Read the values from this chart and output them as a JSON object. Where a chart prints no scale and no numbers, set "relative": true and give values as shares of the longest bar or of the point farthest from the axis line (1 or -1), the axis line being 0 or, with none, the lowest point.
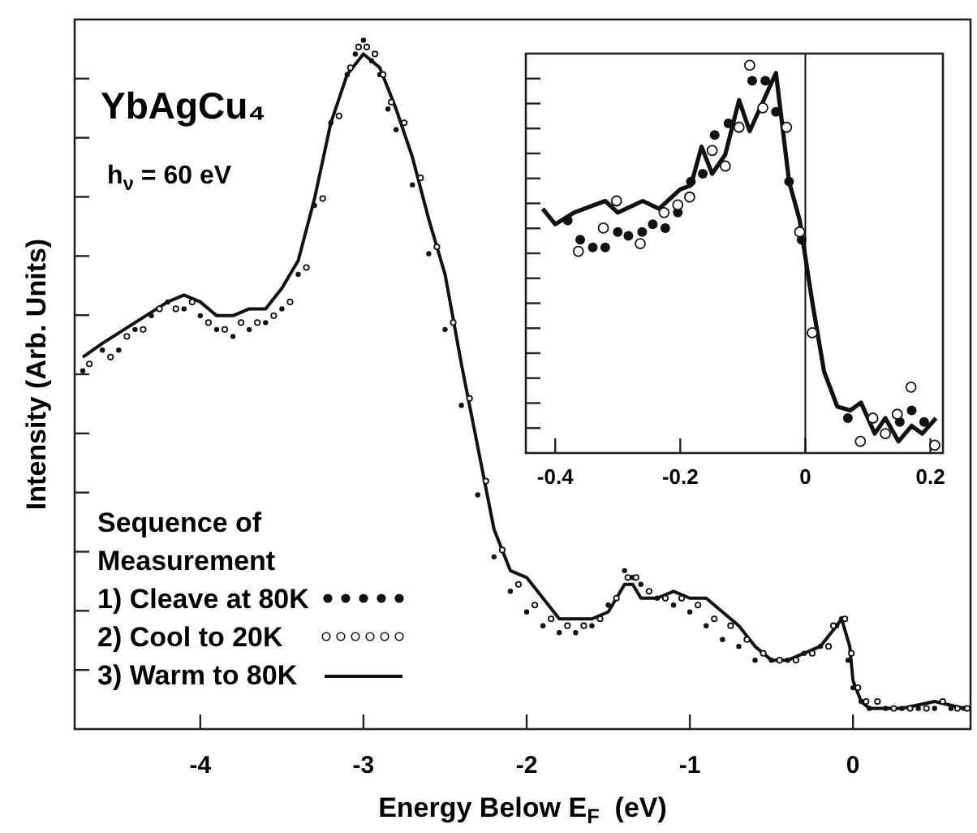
{
  "chart_data": [
    {
      "type": "scatter",
      "relative": true,
      "xlabel": "Energy Below E$_{F}$  (eV)",
      "ylabel": "Intensity (Arb. Units)",
      "legend_title": "Sequence of Measurement",
      "legend": "bottom left",
      "xlim": [
        -4.77,
        0.72
      ],
      "xticks": [
        -4,
        -3,
        -2,
        -1,
        0
      ],
      "annotations": [
        "YbAgCu₄",
        "h$_{ν}$ = 60 eV"
      ],
      "series": [
        {
          "name": "1) Cleave at 80K",
          "marker": "circle",
          "color": "#111111",
          "x": [
            -4.72,
            -4.6,
            -4.5,
            -4.4,
            -4.3,
            -4.2,
            -4.1,
            -4.0,
            -3.9,
            -3.8,
            -3.7,
            -3.6,
            -3.5,
            -3.4,
            -3.3,
            -3.2,
            -3.1,
            -3.05,
            -3.0,
            -2.95,
            -2.9,
            -2.85,
            -2.8,
            -2.7,
            -2.6,
            -2.5,
            -2.4,
            -2.3,
            -2.2,
            -2.1,
            -2.0,
            -1.9,
            -1.8,
            -1.7,
            -1.6,
            -1.5,
            -1.4,
            -1.35,
            -1.3,
            -1.2,
            -1.1,
            -1.0,
            -0.9,
            -0.8,
            -0.7,
            -0.6,
            -0.5,
            -0.4,
            -0.3,
            -0.2,
            -0.1,
            -0.07,
            -0.03,
            0,
            0.05,
            0.1,
            0.2,
            0.3,
            0.4,
            0.5,
            0.6,
            0.68
          ],
          "values": [
            0.52,
            0.55,
            0.55,
            0.58,
            0.6,
            0.62,
            0.61,
            0.6,
            0.58,
            0.57,
            0.58,
            0.59,
            0.61,
            0.66,
            0.76,
            0.88,
            0.95,
            0.98,
            1.0,
            0.97,
            0.95,
            0.9,
            0.87,
            0.79,
            0.69,
            0.58,
            0.47,
            0.34,
            0.25,
            0.2,
            0.17,
            0.15,
            0.14,
            0.14,
            0.15,
            0.18,
            0.23,
            0.22,
            0.21,
            0.19,
            0.18,
            0.17,
            0.15,
            0.13,
            0.12,
            0.1,
            0.1,
            0.1,
            0.11,
            0.12,
            0.15,
            0.16,
            0.1,
            0.06,
            0.04,
            0.03,
            0.03,
            0.03,
            0.03,
            0.03,
            0.03,
            0.03
          ]
        },
        {
          "name": "2) Cool to 20K",
          "marker": "circle",
          "color": "#111111",
          "x": [
            -4.68,
            -4.55,
            -4.45,
            -4.35,
            -4.25,
            -4.15,
            -4.05,
            -3.95,
            -3.85,
            -3.75,
            -3.65,
            -3.55,
            -3.45,
            -3.35,
            -3.25,
            -3.15,
            -3.08,
            -3.03,
            -2.98,
            -2.93,
            -2.88,
            -2.83,
            -2.75,
            -2.65,
            -2.55,
            -2.45,
            -2.35,
            -2.25,
            -2.15,
            -2.05,
            -1.95,
            -1.85,
            -1.75,
            -1.65,
            -1.55,
            -1.45,
            -1.38,
            -1.33,
            -1.25,
            -1.15,
            -1.05,
            -0.95,
            -0.85,
            -0.75,
            -0.65,
            -0.55,
            -0.45,
            -0.35,
            -0.25,
            -0.15,
            -0.12,
            -0.05,
            -0.01,
            0.03,
            0.08,
            0.15,
            0.25,
            0.35,
            0.45,
            0.55,
            0.64,
            0.7
          ],
          "values": [
            0.53,
            0.54,
            0.57,
            0.58,
            0.61,
            0.61,
            0.62,
            0.59,
            0.58,
            0.59,
            0.59,
            0.6,
            0.62,
            0.67,
            0.77,
            0.89,
            0.96,
            0.99,
            0.99,
            0.98,
            0.95,
            0.91,
            0.88,
            0.8,
            0.7,
            0.59,
            0.48,
            0.36,
            0.26,
            0.21,
            0.18,
            0.16,
            0.15,
            0.15,
            0.16,
            0.19,
            0.22,
            0.22,
            0.2,
            0.19,
            0.19,
            0.18,
            0.16,
            0.15,
            0.13,
            0.11,
            0.1,
            0.1,
            0.11,
            0.12,
            0.15,
            0.16,
            0.11,
            0.06,
            0.04,
            0.04,
            0.03,
            0.03,
            0.03,
            0.04,
            0.03,
            0.03
          ]
        },
        {
          "name": "3) Warm to 80K",
          "type": "line",
          "line_style": "solid",
          "color": "#111111",
          "x": [
            -4.72,
            -4.6,
            -4.4,
            -4.2,
            -4.1,
            -4.0,
            -3.9,
            -3.8,
            -3.7,
            -3.6,
            -3.5,
            -3.4,
            -3.3,
            -3.2,
            -3.1,
            -3.0,
            -2.95,
            -2.9,
            -2.85,
            -2.8,
            -2.7,
            -2.6,
            -2.5,
            -2.4,
            -2.3,
            -2.25,
            -2.2,
            -2.1,
            -2.0,
            -1.9,
            -1.8,
            -1.7,
            -1.6,
            -1.5,
            -1.4,
            -1.35,
            -1.3,
            -1.2,
            -1.1,
            -1.0,
            -0.9,
            -0.8,
            -0.7,
            -0.6,
            -0.5,
            -0.4,
            -0.3,
            -0.2,
            -0.1,
            -0.07,
            -0.02,
            0,
            0.05,
            0.1,
            0.3,
            0.5,
            0.68
          ],
          "values": [
            0.54,
            0.56,
            0.59,
            0.62,
            0.63,
            0.62,
            0.6,
            0.6,
            0.61,
            0.61,
            0.64,
            0.68,
            0.77,
            0.88,
            0.95,
            0.98,
            0.97,
            0.96,
            0.93,
            0.9,
            0.83,
            0.74,
            0.66,
            0.53,
            0.41,
            0.35,
            0.29,
            0.23,
            0.22,
            0.19,
            0.16,
            0.16,
            0.16,
            0.17,
            0.21,
            0.21,
            0.19,
            0.19,
            0.2,
            0.19,
            0.19,
            0.17,
            0.15,
            0.12,
            0.1,
            0.1,
            0.11,
            0.12,
            0.15,
            0.16,
            0.12,
            0.07,
            0.04,
            0.03,
            0.03,
            0.04,
            0.03
          ]
        }
      ]
    },
    {
      "type": "scatter",
      "relative": true,
      "legend": false,
      "xlim": [
        -0.447,
        0.22
      ],
      "xticks": [
        -0.4,
        -0.2,
        0,
        0.2
      ],
      "ref_lines": [
        {
          "axis": "x",
          "value": 0,
          "color": "#111111"
        }
      ],
      "series": [
        {
          "marker": "circle",
          "color": "#111111",
          "x": [
            -0.38,
            -0.36,
            -0.34,
            -0.32,
            -0.3,
            -0.283,
            -0.261,
            -0.244,
            -0.224,
            -0.204,
            -0.183,
            -0.164,
            -0.145,
            -0.123,
            -0.085,
            -0.064,
            -0.047,
            -0.026,
            -0.006,
            0.068,
            0.151,
            0.17,
            0.19
          ],
          "values": [
            0.6,
            0.55,
            0.53,
            0.53,
            0.57,
            0.56,
            0.57,
            0.59,
            0.58,
            0.62,
            0.7,
            0.72,
            0.82,
            0.85,
            0.96,
            0.96,
            0.88,
            0.7,
            0.55,
            0.09,
            0.08,
            0.11,
            0.08
          ]
        },
        {
          "marker": "circle",
          "color": "#111111",
          "x": [
            -0.363,
            -0.323,
            -0.302,
            -0.264,
            -0.226,
            -0.204,
            -0.185,
            -0.149,
            -0.128,
            -0.106,
            -0.089,
            -0.068,
            -0.03,
            -0.009,
            0.011,
            0.088,
            0.108,
            0.128,
            0.147,
            0.169,
            0.207
          ],
          "values": [
            0.52,
            0.58,
            0.65,
            0.54,
            0.62,
            0.64,
            0.66,
            0.78,
            0.74,
            0.84,
            1.0,
            0.89,
            0.84,
            0.57,
            0.31,
            0.03,
            0.09,
            0.05,
            0.1,
            0.17,
            0.02
          ]
        },
        {
          "type": "line",
          "line_style": "solid",
          "color": "#111111",
          "x": [
            -0.42,
            -0.4,
            -0.37,
            -0.32,
            -0.3,
            -0.26,
            -0.234,
            -0.2,
            -0.183,
            -0.166,
            -0.149,
            -0.128,
            -0.106,
            -0.089,
            -0.047,
            -0.026,
            -0.009,
            0.011,
            0.03,
            0.051,
            0.072,
            0.089,
            0.111,
            0.128,
            0.149,
            0.17,
            0.187,
            0.209
          ],
          "values": [
            0.63,
            0.59,
            0.62,
            0.65,
            0.62,
            0.65,
            0.63,
            0.68,
            0.69,
            0.79,
            0.72,
            0.77,
            0.91,
            0.83,
            0.98,
            0.7,
            0.6,
            0.39,
            0.21,
            0.12,
            0.11,
            0.13,
            0.05,
            0.09,
            0.03,
            0.07,
            0.05,
            0.09
          ]
        }
      ]
    }
  ]
}
